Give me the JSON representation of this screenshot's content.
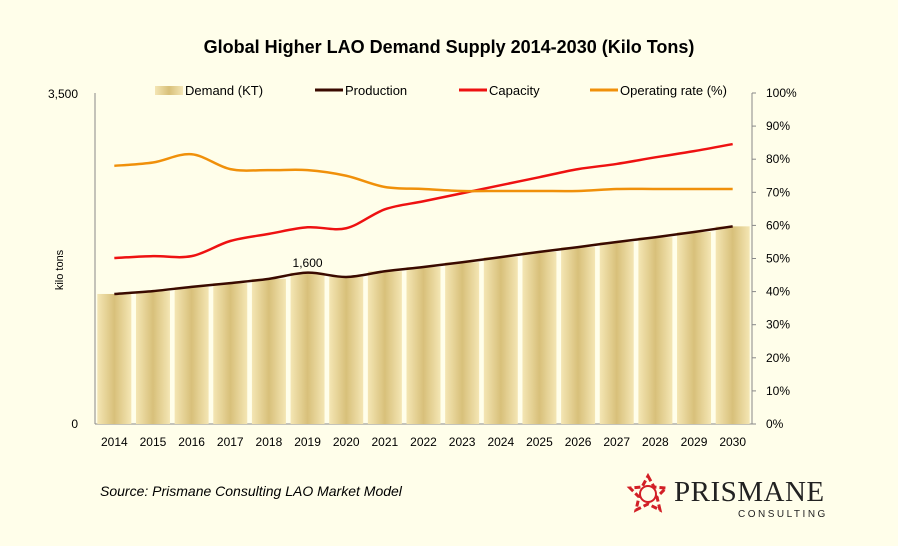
{
  "chart_data": {
    "type": "bar+line",
    "title": "Global Higher LAO Demand Supply 2014-2030 (Kilo Tons)",
    "ylabel": "kilo tons",
    "ylim": [
      0,
      3500
    ],
    "y2lim": [
      0,
      100
    ],
    "yticks": [
      "0",
      "3,500"
    ],
    "y2ticks": [
      "0%",
      "10%",
      "20%",
      "30%",
      "40%",
      "50%",
      "60%",
      "70%",
      "80%",
      "90%",
      "100%"
    ],
    "categories": [
      "2014",
      "2015",
      "2016",
      "2017",
      "2018",
      "2019",
      "2020",
      "2021",
      "2022",
      "2023",
      "2024",
      "2025",
      "2026",
      "2027",
      "2028",
      "2029",
      "2030"
    ],
    "legend_placement": "top",
    "grid": false,
    "series": [
      {
        "name": "Demand (KT)",
        "type": "bar",
        "axis": "left",
        "color": "#e3cf8f",
        "values": [
          1375,
          1405,
          1450,
          1490,
          1535,
          1600,
          1555,
          1615,
          1660,
          1710,
          1765,
          1820,
          1870,
          1925,
          1975,
          2030,
          2090
        ]
      },
      {
        "name": "Production",
        "type": "line",
        "axis": "left",
        "color": "#3a0a00",
        "values": [
          1375,
          1405,
          1450,
          1490,
          1535,
          1600,
          1555,
          1615,
          1660,
          1710,
          1765,
          1820,
          1870,
          1925,
          1975,
          2030,
          2090
        ]
      },
      {
        "name": "Capacity",
        "type": "line",
        "axis": "left",
        "color": "#ee1111",
        "values": [
          1755,
          1775,
          1775,
          1935,
          2010,
          2080,
          2070,
          2270,
          2355,
          2440,
          2525,
          2610,
          2695,
          2750,
          2820,
          2885,
          2960
        ]
      },
      {
        "name": "Operating rate (%)",
        "type": "line",
        "axis": "right",
        "color": "#f0900a",
        "values": [
          78,
          79,
          81.5,
          77,
          76.7,
          76.7,
          75,
          71.6,
          71,
          70.4,
          70.4,
          70.4,
          70.4,
          71,
          71,
          71,
          71
        ]
      }
    ],
    "annotations": [
      {
        "category": "2019",
        "text": "1,600"
      }
    ]
  },
  "source": "Source: Prismane Consulting LAO Market Model",
  "logo": {
    "name": "PRISMANE",
    "sub": "CONSULTING"
  }
}
